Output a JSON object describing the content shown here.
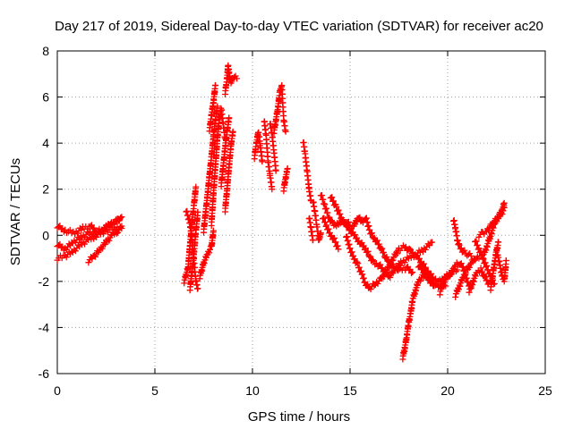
{
  "chart_data": {
    "type": "scatter",
    "title": "Day 217 of 2019, Sidereal Day-to-day VTEC variation (SDTVAR) for receiver ac20",
    "xlabel": "GPS time / hours",
    "ylabel": "SDTVAR / TECUs",
    "xlim": [
      0,
      25
    ],
    "ylim": [
      -6,
      8
    ],
    "xticks": [
      0,
      5,
      10,
      15,
      20,
      25
    ],
    "yticks": [
      -6,
      -4,
      -2,
      0,
      2,
      4,
      6,
      8
    ],
    "grid": true,
    "marker": "+",
    "series_color": "#ff0000",
    "traces": [
      [
        [
          0.0,
          0.4
        ],
        [
          0.4,
          0.2
        ],
        [
          0.9,
          0.1
        ],
        [
          1.3,
          0.3
        ],
        [
          1.7,
          0.4
        ],
        [
          2.0,
          0.2
        ],
        [
          2.3,
          0.2
        ],
        [
          2.7,
          0.5
        ],
        [
          3.0,
          0.6
        ],
        [
          3.3,
          0.8
        ]
      ],
      [
        [
          0.0,
          -0.4
        ],
        [
          0.4,
          -0.6
        ],
        [
          0.8,
          -0.3
        ],
        [
          1.2,
          -0.1
        ],
        [
          1.6,
          0.1
        ],
        [
          2.0,
          0.0
        ],
        [
          2.4,
          0.3
        ],
        [
          2.8,
          0.5
        ],
        [
          3.2,
          0.7
        ]
      ],
      [
        [
          0.0,
          -1.0
        ],
        [
          0.4,
          -0.9
        ],
        [
          0.8,
          -0.7
        ],
        [
          1.2,
          -0.4
        ],
        [
          1.6,
          -0.2
        ],
        [
          2.0,
          0.0
        ],
        [
          2.5,
          0.2
        ],
        [
          3.0,
          0.3
        ],
        [
          3.3,
          0.4
        ]
      ],
      [
        [
          1.6,
          -1.1
        ],
        [
          1.9,
          -0.9
        ],
        [
          2.2,
          -0.6
        ],
        [
          2.5,
          -0.3
        ],
        [
          2.8,
          0.0
        ],
        [
          3.1,
          0.2
        ],
        [
          3.3,
          0.3
        ]
      ],
      [
        [
          6.5,
          -2.0
        ],
        [
          6.7,
          -1.4
        ],
        [
          6.8,
          -0.4
        ],
        [
          6.9,
          0.5
        ],
        [
          7.0,
          1.3
        ],
        [
          7.1,
          2.1
        ]
      ],
      [
        [
          6.8,
          -2.3
        ],
        [
          6.9,
          -1.6
        ],
        [
          7.0,
          -0.8
        ],
        [
          7.1,
          0.2
        ],
        [
          7.2,
          1.0
        ]
      ],
      [
        [
          6.6,
          1.1
        ],
        [
          6.8,
          0.5
        ],
        [
          6.9,
          -0.2
        ],
        [
          7.0,
          -1.1
        ],
        [
          7.1,
          -2.0
        ],
        [
          7.2,
          -2.3
        ]
      ],
      [
        [
          7.3,
          -1.8
        ],
        [
          7.5,
          -1.2
        ],
        [
          7.7,
          -0.8
        ],
        [
          7.9,
          -0.5
        ],
        [
          8.0,
          0.2
        ]
      ],
      [
        [
          7.5,
          0.2
        ],
        [
          7.6,
          1.0
        ],
        [
          7.7,
          1.8
        ],
        [
          7.8,
          2.6
        ],
        [
          7.9,
          3.4
        ],
        [
          8.0,
          4.3
        ],
        [
          8.1,
          5.0
        ],
        [
          8.2,
          5.6
        ]
      ],
      [
        [
          7.8,
          4.6
        ],
        [
          7.9,
          5.2
        ],
        [
          8.0,
          5.8
        ],
        [
          8.1,
          6.5
        ]
      ],
      [
        [
          7.9,
          0.5
        ],
        [
          8.0,
          1.8
        ],
        [
          8.1,
          3.0
        ],
        [
          8.2,
          4.2
        ],
        [
          8.3,
          5.0
        ],
        [
          8.4,
          5.5
        ],
        [
          8.5,
          4.8
        ],
        [
          8.6,
          4.2
        ]
      ],
      [
        [
          8.4,
          2.2
        ],
        [
          8.5,
          3.0
        ],
        [
          8.6,
          3.8
        ],
        [
          8.7,
          4.5
        ],
        [
          8.8,
          5.1
        ]
      ],
      [
        [
          8.6,
          1.1
        ],
        [
          8.7,
          2.0
        ],
        [
          8.8,
          3.0
        ],
        [
          8.9,
          3.9
        ],
        [
          9.0,
          4.5
        ]
      ],
      [
        [
          8.6,
          6.2
        ],
        [
          8.7,
          6.8
        ],
        [
          8.75,
          7.4
        ],
        [
          8.8,
          7.0
        ],
        [
          8.9,
          6.6
        ],
        [
          9.0,
          6.9
        ],
        [
          9.2,
          6.8
        ]
      ],
      [
        [
          10.1,
          3.4
        ],
        [
          10.2,
          4.0
        ],
        [
          10.3,
          4.5
        ],
        [
          10.4,
          3.9
        ],
        [
          10.5,
          3.2
        ]
      ],
      [
        [
          10.6,
          5.0
        ],
        [
          10.7,
          4.3
        ],
        [
          10.8,
          3.2
        ],
        [
          10.9,
          2.6
        ],
        [
          11.0,
          2.0
        ]
      ],
      [
        [
          10.9,
          4.9
        ],
        [
          11.0,
          4.4
        ],
        [
          11.1,
          3.6
        ],
        [
          11.2,
          2.8
        ]
      ],
      [
        [
          11.1,
          4.5
        ],
        [
          11.2,
          5.0
        ],
        [
          11.3,
          5.5
        ],
        [
          11.4,
          6.2
        ],
        [
          11.5,
          6.5
        ],
        [
          11.6,
          5.0
        ],
        [
          11.7,
          4.5
        ]
      ],
      [
        [
          11.6,
          2.0
        ],
        [
          11.7,
          2.5
        ],
        [
          11.8,
          2.9
        ]
      ],
      [
        [
          12.6,
          4.1
        ],
        [
          12.7,
          3.5
        ],
        [
          12.8,
          2.8
        ],
        [
          12.9,
          2.0
        ],
        [
          13.0,
          1.5
        ]
      ],
      [
        [
          12.9,
          0.8
        ],
        [
          13.0,
          0.3
        ],
        [
          13.1,
          -0.2
        ]
      ],
      [
        [
          13.1,
          1.5
        ],
        [
          13.2,
          1.0
        ],
        [
          13.3,
          0.4
        ],
        [
          13.4,
          -0.2
        ],
        [
          13.5,
          0.1
        ]
      ],
      [
        [
          13.5,
          1.8
        ],
        [
          13.7,
          1.3
        ],
        [
          13.9,
          0.8
        ],
        [
          14.1,
          0.5
        ],
        [
          14.3,
          0.4
        ],
        [
          14.5,
          0.6
        ],
        [
          14.7,
          0.5
        ],
        [
          14.9,
          0.6
        ],
        [
          15.0,
          0.3
        ],
        [
          15.2,
          0.4
        ],
        [
          15.4,
          0.8
        ],
        [
          15.6,
          0.6
        ],
        [
          15.8,
          0.7
        ]
      ],
      [
        [
          13.6,
          0.8
        ],
        [
          13.8,
          0.4
        ],
        [
          14.0,
          0.0
        ],
        [
          14.2,
          -0.2
        ],
        [
          14.4,
          -0.6
        ]
      ],
      [
        [
          14.0,
          1.7
        ],
        [
          14.3,
          1.2
        ],
        [
          14.6,
          0.7
        ],
        [
          14.9,
          0.3
        ],
        [
          15.2,
          0.0
        ],
        [
          15.5,
          -0.3
        ],
        [
          15.8,
          -0.6
        ],
        [
          16.0,
          -0.9
        ],
        [
          16.2,
          -1.2
        ],
        [
          16.5,
          -1.3
        ],
        [
          16.8,
          -1.6
        ],
        [
          17.0,
          -1.8
        ],
        [
          17.3,
          -1.5
        ],
        [
          17.6,
          -1.2
        ],
        [
          18.0,
          -1.0
        ],
        [
          18.4,
          -0.8
        ],
        [
          18.8,
          -0.6
        ],
        [
          19.2,
          -0.3
        ]
      ],
      [
        [
          14.8,
          0.0
        ],
        [
          15.0,
          -0.6
        ],
        [
          15.2,
          -1.0
        ],
        [
          15.4,
          -1.3
        ],
        [
          15.6,
          -1.7
        ],
        [
          15.8,
          -2.1
        ],
        [
          16.0,
          -2.3
        ],
        [
          16.3,
          -2.1
        ],
        [
          16.6,
          -1.9
        ],
        [
          16.9,
          -1.5
        ],
        [
          17.2,
          -1.0
        ],
        [
          17.5,
          -0.6
        ],
        [
          17.8,
          -0.5
        ],
        [
          18.1,
          -0.7
        ],
        [
          18.4,
          -0.9
        ],
        [
          18.7,
          -1.2
        ],
        [
          19.0,
          -1.6
        ],
        [
          19.3,
          -1.9
        ],
        [
          19.6,
          -2.0
        ],
        [
          19.9,
          -1.8
        ],
        [
          20.2,
          -1.6
        ],
        [
          20.5,
          -1.5
        ]
      ],
      [
        [
          15.8,
          0.8
        ],
        [
          16.0,
          0.2
        ],
        [
          16.2,
          -0.1
        ],
        [
          16.4,
          -0.3
        ],
        [
          16.6,
          -0.6
        ],
        [
          16.8,
          -0.9
        ],
        [
          17.0,
          -1.2
        ],
        [
          17.3,
          -1.4
        ],
        [
          17.6,
          -1.5
        ],
        [
          17.9,
          -1.4
        ],
        [
          18.2,
          -1.6
        ]
      ],
      [
        [
          17.7,
          -5.3
        ],
        [
          17.8,
          -4.9
        ],
        [
          17.9,
          -4.4
        ],
        [
          18.0,
          -3.8
        ],
        [
          18.1,
          -3.4
        ],
        [
          18.2,
          -2.8
        ],
        [
          18.35,
          -2.4
        ],
        [
          18.5,
          -2.0
        ],
        [
          18.7,
          -1.8
        ],
        [
          18.9,
          -1.8
        ],
        [
          19.1,
          -2.0
        ],
        [
          19.3,
          -2.2
        ]
      ],
      [
        [
          18.5,
          -1.3
        ],
        [
          18.7,
          -1.5
        ],
        [
          19.0,
          -1.8
        ],
        [
          19.3,
          -2.1
        ],
        [
          19.6,
          -2.2
        ],
        [
          19.9,
          -2.2
        ]
      ],
      [
        [
          19.6,
          -2.5
        ],
        [
          19.8,
          -2.0
        ],
        [
          20.0,
          -1.8
        ],
        [
          20.2,
          -1.6
        ],
        [
          20.4,
          -1.3
        ],
        [
          20.6,
          -1.2
        ],
        [
          20.8,
          -1.4
        ],
        [
          21.0,
          -2.0
        ],
        [
          21.2,
          -2.3
        ]
      ],
      [
        [
          20.3,
          0.7
        ],
        [
          20.4,
          0.3
        ],
        [
          20.5,
          -0.2
        ],
        [
          20.6,
          -0.5
        ],
        [
          20.8,
          -0.7
        ],
        [
          21.0,
          -0.8
        ],
        [
          21.2,
          -0.9
        ]
      ],
      [
        [
          20.4,
          -2.6
        ],
        [
          20.6,
          -2.2
        ],
        [
          20.8,
          -1.8
        ],
        [
          21.0,
          -1.5
        ],
        [
          21.2,
          -1.2
        ],
        [
          21.4,
          -1.0
        ],
        [
          21.6,
          -1.0
        ]
      ],
      [
        [
          21.1,
          -2.4
        ],
        [
          21.3,
          -2.0
        ],
        [
          21.5,
          -1.6
        ],
        [
          21.7,
          -1.5
        ],
        [
          21.9,
          -1.8
        ],
        [
          22.1,
          -2.1
        ]
      ],
      [
        [
          21.4,
          -0.2
        ],
        [
          21.6,
          -0.6
        ],
        [
          21.8,
          -1.0
        ],
        [
          22.0,
          -1.4
        ],
        [
          22.2,
          -1.8
        ],
        [
          22.4,
          -2.1
        ]
      ],
      [
        [
          21.6,
          0.0
        ],
        [
          21.8,
          0.1
        ],
        [
          22.0,
          0.2
        ],
        [
          22.2,
          0.4
        ],
        [
          22.4,
          0.6
        ],
        [
          22.6,
          0.8
        ],
        [
          22.8,
          1.1
        ],
        [
          22.9,
          1.4
        ]
      ],
      [
        [
          21.8,
          -0.9
        ],
        [
          22.0,
          -0.5
        ],
        [
          22.2,
          0.0
        ],
        [
          22.4,
          0.5
        ],
        [
          22.6,
          0.8
        ],
        [
          22.8,
          1.0
        ],
        [
          22.9,
          1.2
        ]
      ],
      [
        [
          22.2,
          -2.3
        ],
        [
          22.3,
          -1.8
        ],
        [
          22.4,
          -1.2
        ],
        [
          22.5,
          -0.7
        ],
        [
          22.6,
          -0.3
        ]
      ],
      [
        [
          22.5,
          -0.8
        ],
        [
          22.6,
          -1.0
        ],
        [
          22.7,
          -1.4
        ],
        [
          22.8,
          -1.8
        ],
        [
          22.9,
          -2.0
        ],
        [
          23.0,
          -1.1
        ]
      ]
    ]
  }
}
